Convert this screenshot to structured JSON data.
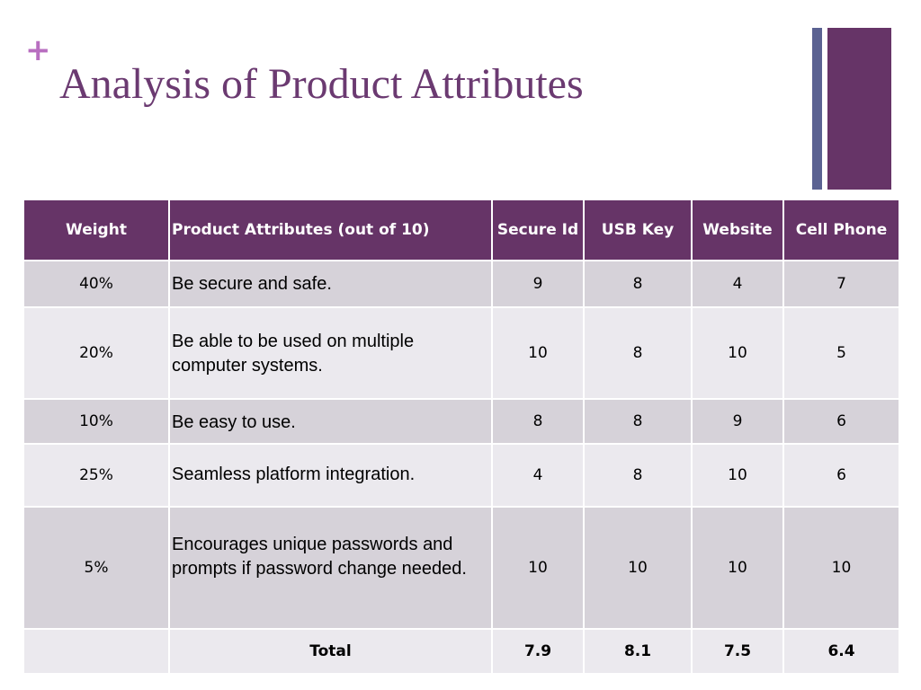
{
  "slide": {
    "plus_symbol": "+",
    "title": "Analysis of Product Attributes"
  },
  "table": {
    "headers": {
      "weight": "Weight",
      "attributes": "Product Attributes (out of 10)",
      "secure_id": "Secure Id",
      "usb_key": "USB Key",
      "website": "Website",
      "cell_phone": "Cell Phone"
    },
    "rows": [
      {
        "weight": "40%",
        "attribute": "Be secure and safe.",
        "secure_id": "9",
        "usb_key": "8",
        "website": "4",
        "cell_phone": "7"
      },
      {
        "weight": "20%",
        "attribute": "Be able to be used on multiple computer systems.",
        "secure_id": "10",
        "usb_key": "8",
        "website": "10",
        "cell_phone": "5"
      },
      {
        "weight": "10%",
        "attribute": "Be easy to use.",
        "secure_id": "8",
        "usb_key": "8",
        "website": "9",
        "cell_phone": "6"
      },
      {
        "weight": "25%",
        "attribute": "Seamless platform integration.",
        "secure_id": "4",
        "usb_key": "8",
        "website": "10",
        "cell_phone": "6"
      },
      {
        "weight": "5%",
        "attribute": "Encourages unique passwords and prompts if password change needed.",
        "secure_id": "10",
        "usb_key": "10",
        "website": "10",
        "cell_phone": "10"
      }
    ],
    "total": {
      "label": "Total",
      "secure_id": "7.9",
      "usb_key": "8.1",
      "website": "7.5",
      "cell_phone": "6.4"
    }
  },
  "colors": {
    "accent_purple": "#663467",
    "title_purple": "#6b3a71",
    "plus_pink": "#b86ec0",
    "deco_blue": "#5b6292",
    "row_dark": "#d6d2d9",
    "row_light": "#ebe9ee"
  }
}
